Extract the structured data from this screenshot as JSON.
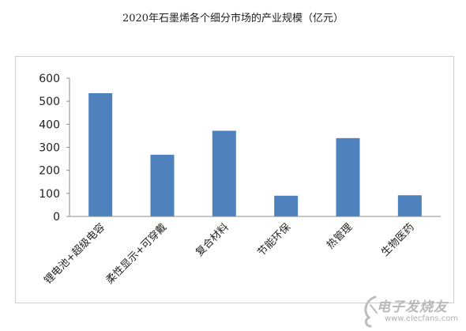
{
  "chart_data": {
    "type": "bar",
    "title": "2020年石墨烯各个细分市场的产业规模（亿元）",
    "categories": [
      "锂电池+超级电容",
      "柔性显示+可穿戴",
      "复合材料",
      "节能环保",
      "热管理",
      "生物医药"
    ],
    "values": [
      535,
      268,
      372,
      90,
      340,
      92
    ],
    "ylim": [
      0,
      600
    ],
    "yticks": [
      0,
      100,
      200,
      300,
      400,
      500,
      600
    ],
    "xlabel": "",
    "ylabel": "",
    "grid": false,
    "legend": "none",
    "bar_color": "#4f81bd"
  },
  "watermark": {
    "logo_text": "电子发烧友",
    "url": "www.elecfans.com"
  }
}
